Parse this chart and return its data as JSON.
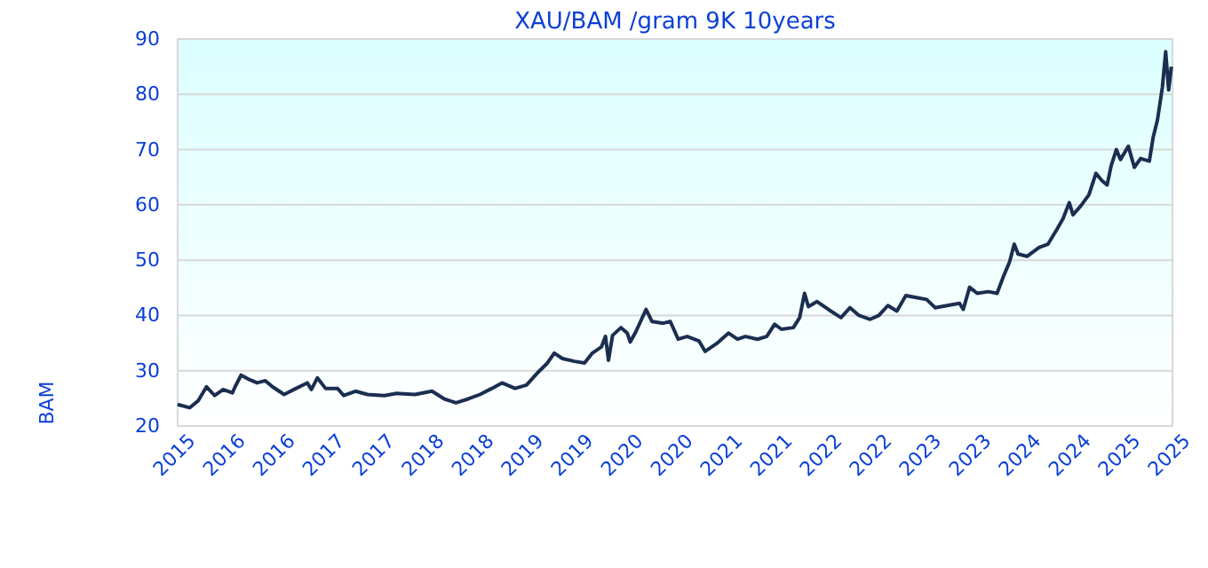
{
  "chart_data": {
    "type": "line",
    "title": "XAU/BAM /gram 9K 10years",
    "ylabel": "BAM",
    "x": [
      "2015-10-01",
      "2015-11-14",
      "2015-12-16",
      "2016-01-15",
      "2016-02-14",
      "2016-03-16",
      "2016-04-19",
      "2016-04-29",
      "2016-05-21",
      "2016-06-16",
      "2016-07-19",
      "2016-08-18",
      "2016-09-13",
      "2016-10-26",
      "2016-12-09",
      "2017-01-19",
      "2017-02-03",
      "2017-02-25",
      "2017-03-27",
      "2017-05-10",
      "2017-06-02",
      "2017-07-15",
      "2017-08-28",
      "2017-10-29",
      "2017-12-13",
      "2018-02-18",
      "2018-04-22",
      "2018-06-06",
      "2018-07-19",
      "2018-09-02",
      "2018-10-15",
      "2018-11-28",
      "2019-01-04",
      "2019-02-21",
      "2019-04-04",
      "2019-05-18",
      "2019-06-20",
      "2019-07-15",
      "2019-08-14",
      "2019-09-27",
      "2019-11-03",
      "2019-12-02",
      "2020-01-04",
      "2020-01-19",
      "2020-01-30",
      "2020-02-14",
      "2020-03-16",
      "2020-04-08",
      "2020-04-19",
      "2020-05-10",
      "2020-06-16",
      "2020-07-08",
      "2020-08-18",
      "2020-09-13",
      "2020-10-12",
      "2020-11-14",
      "2020-12-27",
      "2021-01-19",
      "2021-03-02",
      "2021-04-15",
      "2021-05-18",
      "2021-06-16",
      "2021-07-30",
      "2021-09-02",
      "2021-10-01",
      "2021-10-26",
      "2021-12-09",
      "2022-01-01",
      "2022-01-19",
      "2022-02-02",
      "2022-03-06",
      "2022-04-19",
      "2022-06-02",
      "2022-07-05",
      "2022-08-07",
      "2022-09-17",
      "2022-10-19",
      "2022-11-21",
      "2022-12-24",
      "2023-01-26",
      "2023-03-09",
      "2023-04-12",
      "2023-05-14",
      "2023-06-27",
      "2023-08-11",
      "2023-08-25",
      "2023-09-17",
      "2023-10-15",
      "2023-11-25",
      "2023-12-27",
      "2024-01-19",
      "2024-02-11",
      "2024-02-28",
      "2024-03-13",
      "2024-04-15",
      "2024-05-29",
      "2024-07-01",
      "2024-08-03",
      "2024-08-25",
      "2024-09-17",
      "2024-10-01",
      "2024-10-29",
      "2024-11-28",
      "2024-12-24",
      "2025-01-15",
      "2025-02-03",
      "2025-02-18",
      "2025-03-09",
      "2025-03-24",
      "2025-04-22",
      "2025-05-14",
      "2025-06-06",
      "2025-07-08",
      "2025-07-22",
      "2025-08-07",
      "2025-08-25",
      "2025-09-06",
      "2025-09-17",
      "2025-09-27"
    ],
    "series": [
      {
        "color": "#1a2e50",
        "values": [
          23.9,
          23.3,
          24.6,
          27.1,
          25.5,
          26.6,
          26.0,
          27.1,
          29.2,
          28.5,
          27.8,
          28.2,
          27.1,
          25.7,
          26.8,
          27.8,
          26.6,
          28.7,
          26.8,
          26.8,
          25.5,
          26.3,
          25.7,
          25.5,
          25.9,
          25.7,
          26.3,
          24.9,
          24.2,
          24.9,
          25.7,
          26.8,
          27.8,
          26.8,
          27.4,
          29.8,
          31.4,
          33.2,
          32.2,
          31.7,
          31.4,
          33.2,
          34.3,
          36.2,
          31.9,
          36.4,
          37.8,
          36.8,
          35.2,
          37.1,
          41.1,
          38.9,
          38.6,
          38.9,
          35.7,
          36.2,
          35.4,
          33.5,
          34.9,
          36.8,
          35.7,
          36.2,
          35.7,
          36.2,
          38.4,
          37.5,
          37.8,
          39.6,
          44.0,
          41.6,
          42.5,
          41.0,
          39.6,
          41.4,
          40.0,
          39.3,
          40.0,
          41.8,
          40.8,
          43.6,
          43.2,
          42.9,
          41.4,
          41.8,
          42.2,
          41.1,
          45.1,
          44.0,
          44.3,
          44.0,
          47.0,
          49.7,
          52.9,
          51.1,
          50.7,
          52.3,
          52.9,
          55.6,
          57.5,
          60.4,
          58.2,
          59.8,
          61.8,
          65.7,
          64.4,
          63.6,
          67.1,
          70.0,
          68.2,
          70.6,
          66.8,
          68.4,
          67.9,
          72.2,
          75.4,
          81.3,
          87.7,
          80.8,
          85.0
        ]
      }
    ],
    "xlim": [
      "2015-10-01",
      "2025-10-01"
    ],
    "xticks": [
      {
        "value": "2015-10-01",
        "label": "2015"
      },
      {
        "value": "2016-04-01",
        "label": "2016"
      },
      {
        "value": "2016-10-01",
        "label": "2016"
      },
      {
        "value": "2017-04-01",
        "label": "2017"
      },
      {
        "value": "2017-10-01",
        "label": "2017"
      },
      {
        "value": "2018-04-01",
        "label": "2018"
      },
      {
        "value": "2018-10-01",
        "label": "2018"
      },
      {
        "value": "2019-04-01",
        "label": "2019"
      },
      {
        "value": "2019-10-01",
        "label": "2019"
      },
      {
        "value": "2020-04-01",
        "label": "2020"
      },
      {
        "value": "2020-10-01",
        "label": "2020"
      },
      {
        "value": "2021-04-01",
        "label": "2021"
      },
      {
        "value": "2021-10-01",
        "label": "2021"
      },
      {
        "value": "2022-04-01",
        "label": "2022"
      },
      {
        "value": "2022-10-01",
        "label": "2022"
      },
      {
        "value": "2023-04-01",
        "label": "2023"
      },
      {
        "value": "2023-10-01",
        "label": "2023"
      },
      {
        "value": "2024-04-01",
        "label": "2024"
      },
      {
        "value": "2024-10-01",
        "label": "2024"
      },
      {
        "value": "2025-04-01",
        "label": "2025"
      },
      {
        "value": "2025-10-01",
        "label": "2025"
      }
    ],
    "ylim": [
      20,
      90
    ],
    "yticks": [
      20,
      30,
      40,
      50,
      60,
      70,
      80,
      90
    ],
    "grid": "y",
    "marker": "none",
    "line_style": "solid"
  }
}
